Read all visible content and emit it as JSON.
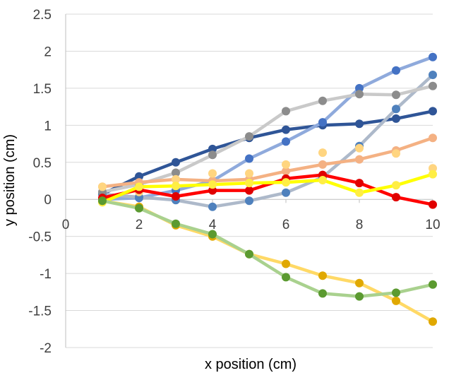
{
  "chart_data": {
    "type": "line",
    "title": "",
    "xlabel": "x position (cm)",
    "ylabel": "y position (cm)",
    "xlim": [
      0,
      10
    ],
    "ylim": [
      -2,
      2.5
    ],
    "x_ticks": [
      0,
      2,
      4,
      6,
      8,
      10
    ],
    "y_ticks": [
      -2,
      -1.5,
      -1,
      -0.5,
      0,
      0.5,
      1,
      1.5,
      2,
      2.5
    ],
    "x_tick_labels": [
      "0",
      "2",
      "4",
      "6",
      "8",
      "10"
    ],
    "y_tick_labels": [
      "-2",
      "-1.5",
      "-1",
      "-0.5",
      "0",
      "0.5",
      "1",
      "1.5",
      "2",
      "2.5"
    ],
    "grid": "horizontal",
    "legend": "none",
    "x": [
      1,
      2,
      3,
      4,
      5,
      6,
      7,
      8,
      9,
      10
    ],
    "series": [
      {
        "color": "#2F5597",
        "line": true,
        "values": [
          0.07,
          0.31,
          0.5,
          0.68,
          0.83,
          0.94,
          1.0,
          1.02,
          1.09,
          1.19
        ]
      },
      {
        "color": "#8FAADC",
        "marker_color": "#4472C4",
        "line": true,
        "values": [
          0.0,
          0.02,
          0.12,
          0.25,
          0.55,
          0.78,
          1.04,
          1.5,
          1.74,
          1.92
        ]
      },
      {
        "color": "#ADB9CA",
        "marker_color": "#4F81BD",
        "line": true,
        "values": [
          0.07,
          0.03,
          -0.01,
          -0.1,
          -0.02,
          0.09,
          0.3,
          0.72,
          1.22,
          1.68
        ]
      },
      {
        "color": "#C9C9C9",
        "marker_color": "#8C8C8C",
        "line": true,
        "values": [
          0.1,
          0.2,
          0.36,
          0.6,
          0.85,
          1.19,
          1.33,
          1.42,
          1.41,
          1.53
        ]
      },
      {
        "color": "#F4B183",
        "marker_color": "#F4B183",
        "line": true,
        "values": [
          0.17,
          0.23,
          0.27,
          0.25,
          0.27,
          0.38,
          0.47,
          0.54,
          0.66,
          0.83
        ]
      },
      {
        "color": "#FFD966",
        "marker_color": "#FFD580",
        "line": false,
        "values": [
          0.17,
          0.1,
          0.27,
          0.35,
          0.35,
          0.47,
          0.63,
          0.69,
          0.62,
          0.42
        ]
      },
      {
        "color": "#FF0000",
        "marker_color": "#E00000",
        "line": true,
        "values": [
          0.02,
          0.13,
          0.04,
          0.12,
          0.12,
          0.28,
          0.33,
          0.22,
          0.03,
          -0.07
        ]
      },
      {
        "color": "#FFFF00",
        "marker_color": "#FFEE44",
        "line": true,
        "values": [
          -0.04,
          0.17,
          0.18,
          0.2,
          0.22,
          0.23,
          0.26,
          0.09,
          0.19,
          0.34
        ]
      },
      {
        "color": "#FFD966",
        "marker_color": "#E0A800",
        "line": true,
        "values": [
          -0.02,
          -0.1,
          -0.35,
          -0.5,
          -0.74,
          -0.87,
          -1.03,
          -1.13,
          -1.37,
          -1.65
        ]
      },
      {
        "color": "#A9D18E",
        "marker_color": "#5B9A30",
        "line": true,
        "values": [
          -0.02,
          -0.12,
          -0.33,
          -0.47,
          -0.74,
          -1.05,
          -1.27,
          -1.31,
          -1.26,
          -1.15
        ]
      }
    ]
  }
}
